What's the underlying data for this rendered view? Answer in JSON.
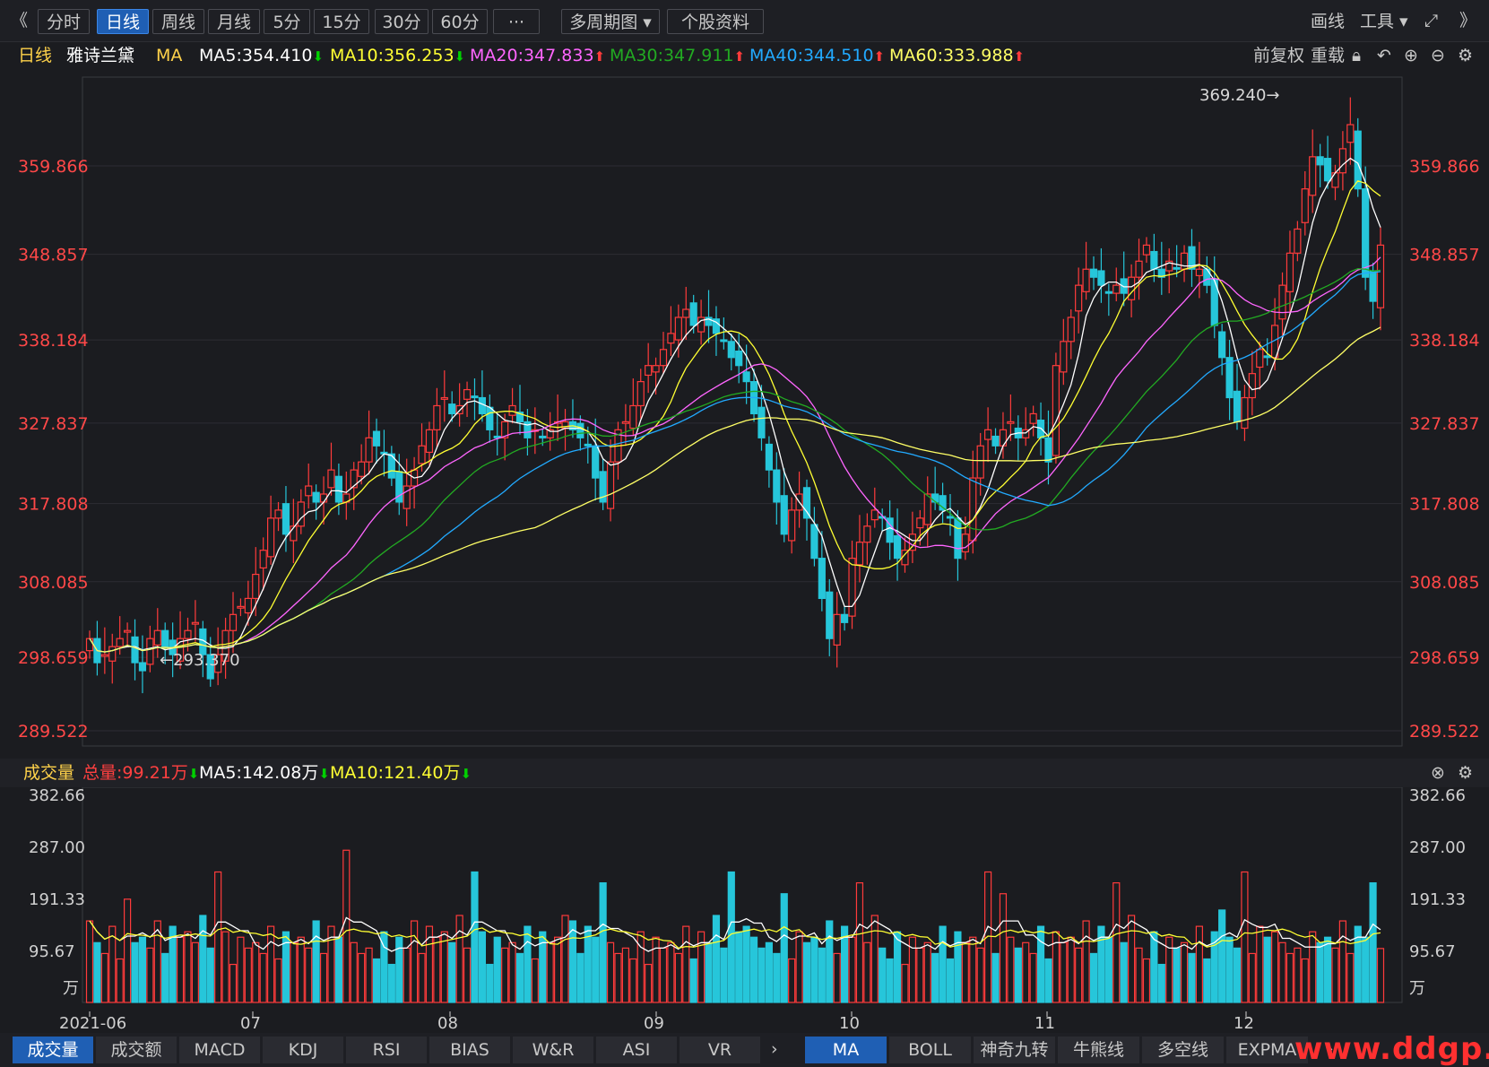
{
  "toolbar": {
    "back": "《",
    "forward": "》",
    "buttons": [
      "分时",
      "日线",
      "周线",
      "月线",
      "5分",
      "15分",
      "30分",
      "60分",
      "···",
      "多周期图 ▾",
      "个股资料"
    ],
    "active_index": 1,
    "right_items": [
      "画线",
      "工具 ▾"
    ]
  },
  "ma_header": {
    "period": "日线",
    "stock": "雅诗兰黛",
    "indicator": "MA",
    "items": [
      {
        "label": "MA5:354.410",
        "dir": "down",
        "color": "#ffffff"
      },
      {
        "label": "MA10:356.253",
        "dir": "down",
        "color": "#ffff33"
      },
      {
        "label": "MA20:347.833",
        "dir": "up",
        "color": "#ff66ff"
      },
      {
        "label": "MA30:347.911",
        "dir": "up",
        "color": "#22aa22"
      },
      {
        "label": "MA40:344.510",
        "dir": "up",
        "color": "#22aaff"
      },
      {
        "label": "MA60:333.988",
        "dir": "up",
        "color": "#ffff66"
      }
    ],
    "right_items": [
      "前复权",
      "重载"
    ]
  },
  "price_axis": [
    "359.866",
    "348.857",
    "338.184",
    "327.837",
    "317.808",
    "308.085",
    "298.659",
    "289.522"
  ],
  "annotations": {
    "high": "369.240→",
    "low": "←293.370"
  },
  "volume_header": {
    "title": "成交量",
    "total": "总量:99.21万",
    "ma5": "MA5:142.08万",
    "ma10": "MA10:121.40万"
  },
  "volume_axis": [
    "382.66",
    "287.00",
    "191.33",
    "95.67"
  ],
  "volume_unit": "万",
  "dates": [
    "2021-06",
    "07",
    "08",
    "09",
    "10",
    "11",
    "12"
  ],
  "tabs_left": [
    "成交量",
    "成交额",
    "MACD",
    "KDJ",
    "RSI",
    "BIAS",
    "W&R",
    "ASI",
    "VR"
  ],
  "tabs_right": [
    "MA",
    "BOLL",
    "神奇九转",
    "牛熊线",
    "多空线",
    "EXPMA"
  ],
  "watermark": "www.ddgp.net",
  "chart_data": {
    "type": "candlestick",
    "price_range": [
      289.522,
      369.24
    ],
    "price_ticks": [
      359.866,
      348.857,
      338.184,
      327.837,
      317.808,
      308.085,
      298.659,
      289.522
    ],
    "high": 369.24,
    "low": 293.37,
    "volume_range": [
      0,
      382.66
    ],
    "volume_ticks": [
      382.66,
      287.0,
      191.33,
      95.67
    ],
    "ma_latest": {
      "MA5": 354.41,
      "MA10": 356.253,
      "MA20": 347.833,
      "MA30": 347.911,
      "MA40": 344.51,
      "MA60": 333.988
    },
    "vol_ma_latest": {
      "MA5": 142.08,
      "MA10": 121.4
    },
    "vol_total_latest": 99.21,
    "closes": [
      301,
      298,
      299,
      300,
      301,
      302,
      298,
      297,
      301,
      302,
      300,
      299,
      301,
      302,
      303,
      299,
      296,
      299,
      302,
      304,
      305,
      306,
      309,
      312,
      316,
      317,
      314,
      315,
      318,
      320,
      318,
      319,
      322,
      318,
      319,
      322,
      323,
      326,
      325,
      324,
      321,
      318,
      320,
      322,
      325,
      327,
      330,
      331,
      329,
      330,
      332,
      331,
      329,
      327,
      326,
      328,
      330,
      328,
      326,
      327,
      326,
      327,
      328,
      328,
      327,
      326,
      325,
      321,
      318,
      323,
      327,
      328,
      330,
      333,
      335,
      335,
      337,
      339,
      341,
      342,
      340,
      341,
      340,
      339,
      338,
      336,
      335,
      333,
      329,
      326,
      322,
      318,
      314,
      317,
      319,
      316,
      311,
      306,
      301,
      304,
      303,
      311,
      313,
      315,
      317,
      316,
      313,
      311,
      312,
      314,
      316,
      319,
      318,
      317,
      316,
      311,
      314,
      321,
      325,
      327,
      325,
      327,
      328,
      326,
      327,
      329,
      326,
      323,
      335,
      338,
      341,
      345,
      347,
      346,
      345,
      344,
      345,
      344,
      346,
      348,
      350,
      347,
      346,
      348,
      347,
      349,
      347,
      347,
      345,
      340,
      336,
      331,
      328,
      331,
      334,
      337,
      336,
      340,
      345,
      349,
      352,
      357,
      361,
      360,
      358,
      359,
      362,
      365,
      357,
      346,
      343,
      350
    ]
  }
}
